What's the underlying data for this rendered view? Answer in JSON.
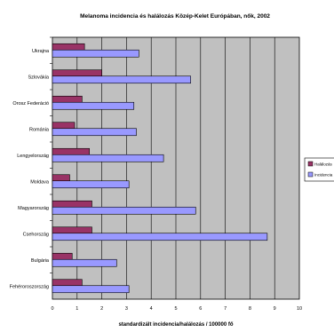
{
  "chart_data": {
    "type": "bar",
    "orientation": "horizontal",
    "title": "Melanoma incidencia és halálozás Közép-Kelet Európában, nők, 2002",
    "xlabel": "standardizált incidencia/halálozás / 100000 fő",
    "ylabel": "",
    "xlim": [
      0,
      10
    ],
    "xticks": [
      "0",
      "1",
      "2",
      "3",
      "4",
      "5",
      "6",
      "7",
      "8",
      "9",
      "10"
    ],
    "grid": true,
    "legend_position": "right",
    "categories": [
      "Ukrajna",
      "Szlovákia",
      "Orosz Federáció",
      "Románia",
      "Lengyelország",
      "Moldava",
      "Magyarország",
      "Csehország",
      "Bulgária",
      "Fehéroroszország"
    ],
    "series": [
      {
        "name": "Halálozás",
        "color": "#993366",
        "values": [
          1.3,
          2.0,
          1.2,
          0.9,
          1.5,
          0.7,
          1.6,
          1.6,
          0.8,
          1.2
        ]
      },
      {
        "name": "Incidencia",
        "color": "#9999ff",
        "values": [
          3.5,
          5.6,
          3.3,
          3.4,
          4.5,
          3.1,
          5.8,
          8.7,
          2.6,
          3.1
        ]
      }
    ],
    "colors": {
      "plot_background": "#c0c0c0",
      "gridline": "#000000"
    }
  }
}
